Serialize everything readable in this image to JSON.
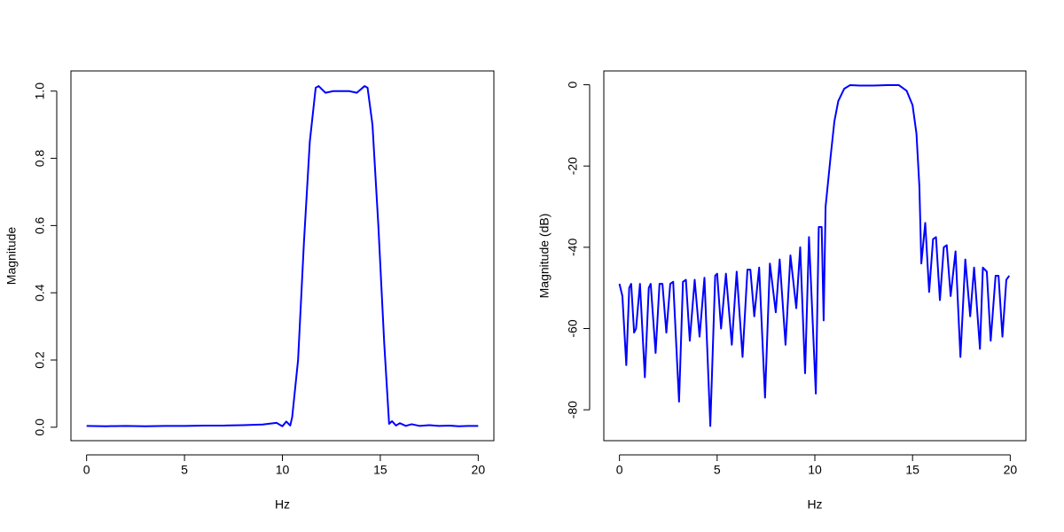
{
  "chart_data": [
    {
      "type": "line",
      "xlabel": "Hz",
      "ylabel": "Magnitude",
      "color": "#0000ff",
      "xlim": [
        -0.8,
        20.8
      ],
      "ylim": [
        -0.04,
        1.06
      ],
      "xticks": [
        0,
        5,
        10,
        15,
        20
      ],
      "yticks": [
        {
          "value": 0,
          "label": "0.0"
        },
        0.2,
        0.4,
        0.6,
        0.8,
        {
          "value": 1,
          "label": "1.0"
        }
      ],
      "x": [
        0,
        1,
        2,
        3,
        4,
        5,
        6,
        7,
        8,
        9,
        9.7,
        10.0,
        10.2,
        10.4,
        10.5,
        10.8,
        11.1,
        11.4,
        11.7,
        11.85,
        12.2,
        12.6,
        13.0,
        13.4,
        13.8,
        14.2,
        14.35,
        14.6,
        14.9,
        15.2,
        15.45,
        15.6,
        15.8,
        16.0,
        16.3,
        16.6,
        17,
        17.5,
        18,
        18.5,
        19,
        19.5,
        20
      ],
      "values": [
        0.004,
        0.003,
        0.004,
        0.003,
        0.004,
        0.004,
        0.005,
        0.005,
        0.006,
        0.008,
        0.013,
        0.003,
        0.017,
        0.005,
        0.03,
        0.2,
        0.55,
        0.85,
        1.01,
        1.015,
        0.995,
        1.0,
        1.0,
        1.0,
        0.995,
        1.015,
        1.01,
        0.9,
        0.6,
        0.25,
        0.01,
        0.018,
        0.005,
        0.012,
        0.004,
        0.009,
        0.004,
        0.006,
        0.004,
        0.005,
        0.003,
        0.004,
        0.004
      ]
    },
    {
      "type": "line",
      "xlabel": "Hz",
      "ylabel": "Magnitude (dB)",
      "color": "#0000ff",
      "xlim": [
        -0.8,
        20.8
      ],
      "ylim": [
        -87.6,
        3.4
      ],
      "xticks": [
        0,
        5,
        10,
        15,
        20
      ],
      "yticks": [
        0,
        -20,
        -40,
        -60,
        -80
      ],
      "x": [
        0.0,
        0.15,
        0.35,
        0.5,
        0.6,
        0.75,
        0.85,
        1.05,
        1.3,
        1.5,
        1.6,
        1.85,
        2.05,
        2.2,
        2.4,
        2.6,
        2.75,
        3.05,
        3.25,
        3.4,
        3.6,
        3.85,
        4.1,
        4.35,
        4.65,
        4.9,
        5.0,
        5.2,
        5.45,
        5.75,
        6.0,
        6.3,
        6.55,
        6.7,
        6.9,
        7.15,
        7.45,
        7.7,
        8.0,
        8.2,
        8.5,
        8.75,
        9.05,
        9.25,
        9.5,
        9.7,
        10.05,
        10.2,
        10.35,
        10.45,
        10.55,
        10.8,
        11.0,
        11.2,
        11.5,
        11.8,
        12.3,
        13.0,
        13.7,
        14.3,
        14.7,
        15.0,
        15.2,
        15.35,
        15.45,
        15.65,
        15.85,
        16.05,
        16.2,
        16.4,
        16.6,
        16.75,
        16.95,
        17.2,
        17.45,
        17.7,
        17.95,
        18.15,
        18.45,
        18.6,
        18.8,
        19.0,
        19.25,
        19.4,
        19.6,
        19.8,
        19.95
      ],
      "values": [
        -49,
        -52,
        -69,
        -50,
        -49,
        -61,
        -60,
        -49,
        -72,
        -50,
        -49,
        -66,
        -49,
        -49,
        -61,
        -49,
        -48.5,
        -78,
        -48.5,
        -48,
        -63,
        -48,
        -62,
        -47.5,
        -84,
        -47,
        -46.5,
        -60,
        -46.5,
        -64,
        -46,
        -67,
        -45.5,
        -45.5,
        -57,
        -45,
        -77,
        -44,
        -56,
        -43,
        -64,
        -42,
        -55,
        -40,
        -71,
        -37.5,
        -76,
        -35,
        -35,
        -58,
        -30,
        -18,
        -9,
        -4,
        -1,
        -0.1,
        -0.2,
        -0.2,
        -0.1,
        -0.1,
        -1.5,
        -5,
        -12,
        -25,
        -44,
        -34,
        -51,
        -38,
        -37.5,
        -53,
        -40,
        -39.5,
        -52,
        -41,
        -67,
        -43,
        -57,
        -45,
        -65,
        -45,
        -46,
        -63,
        -47,
        -47,
        -62,
        -48,
        -47
      ]
    }
  ]
}
